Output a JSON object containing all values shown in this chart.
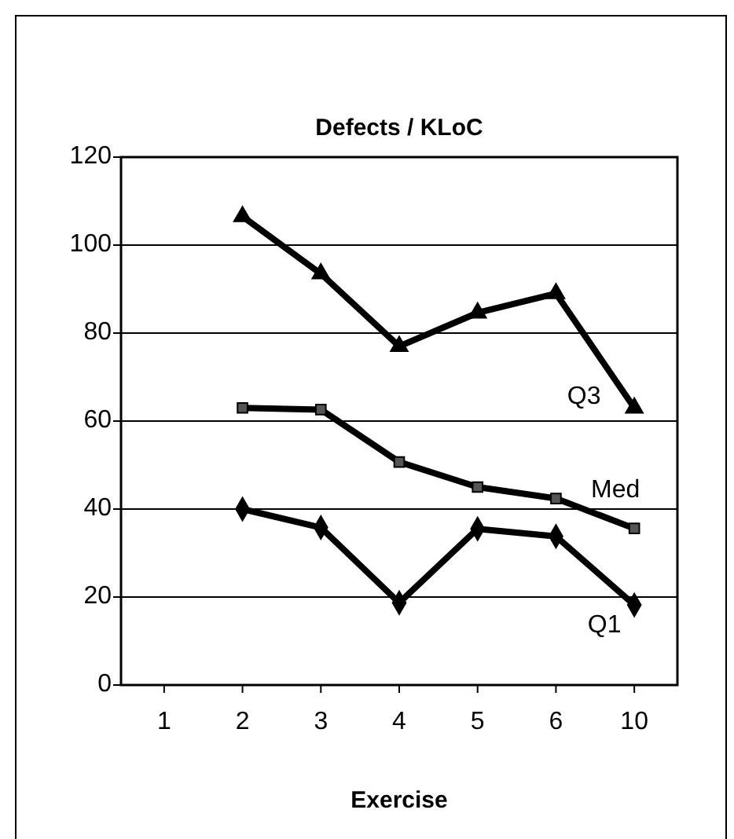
{
  "chart_data": {
    "type": "line",
    "title": "Defects / KLoC",
    "xlabel": "Exercise",
    "categories": [
      "1",
      "2",
      "3",
      "4",
      "5",
      "6",
      "10"
    ],
    "series": [
      {
        "name": "Q3",
        "color": "#000000",
        "marker": "triangle",
        "values": [
          null,
          106.5,
          93.5,
          77,
          84.6,
          89,
          63
        ]
      },
      {
        "name": "Med",
        "color": "#000000",
        "marker": "square",
        "values": [
          null,
          63,
          62.6,
          50.7,
          45,
          42.4,
          35.6
        ]
      },
      {
        "name": "Q1",
        "color": "#000000",
        "marker": "diamond",
        "values": [
          null,
          40,
          35.8,
          18.7,
          35.5,
          33.8,
          18.2
        ]
      }
    ],
    "ylim": [
      0,
      120
    ],
    "yticks": [
      0,
      20,
      40,
      60,
      80,
      100,
      120
    ],
    "grid": "y",
    "line_style": "solid"
  }
}
